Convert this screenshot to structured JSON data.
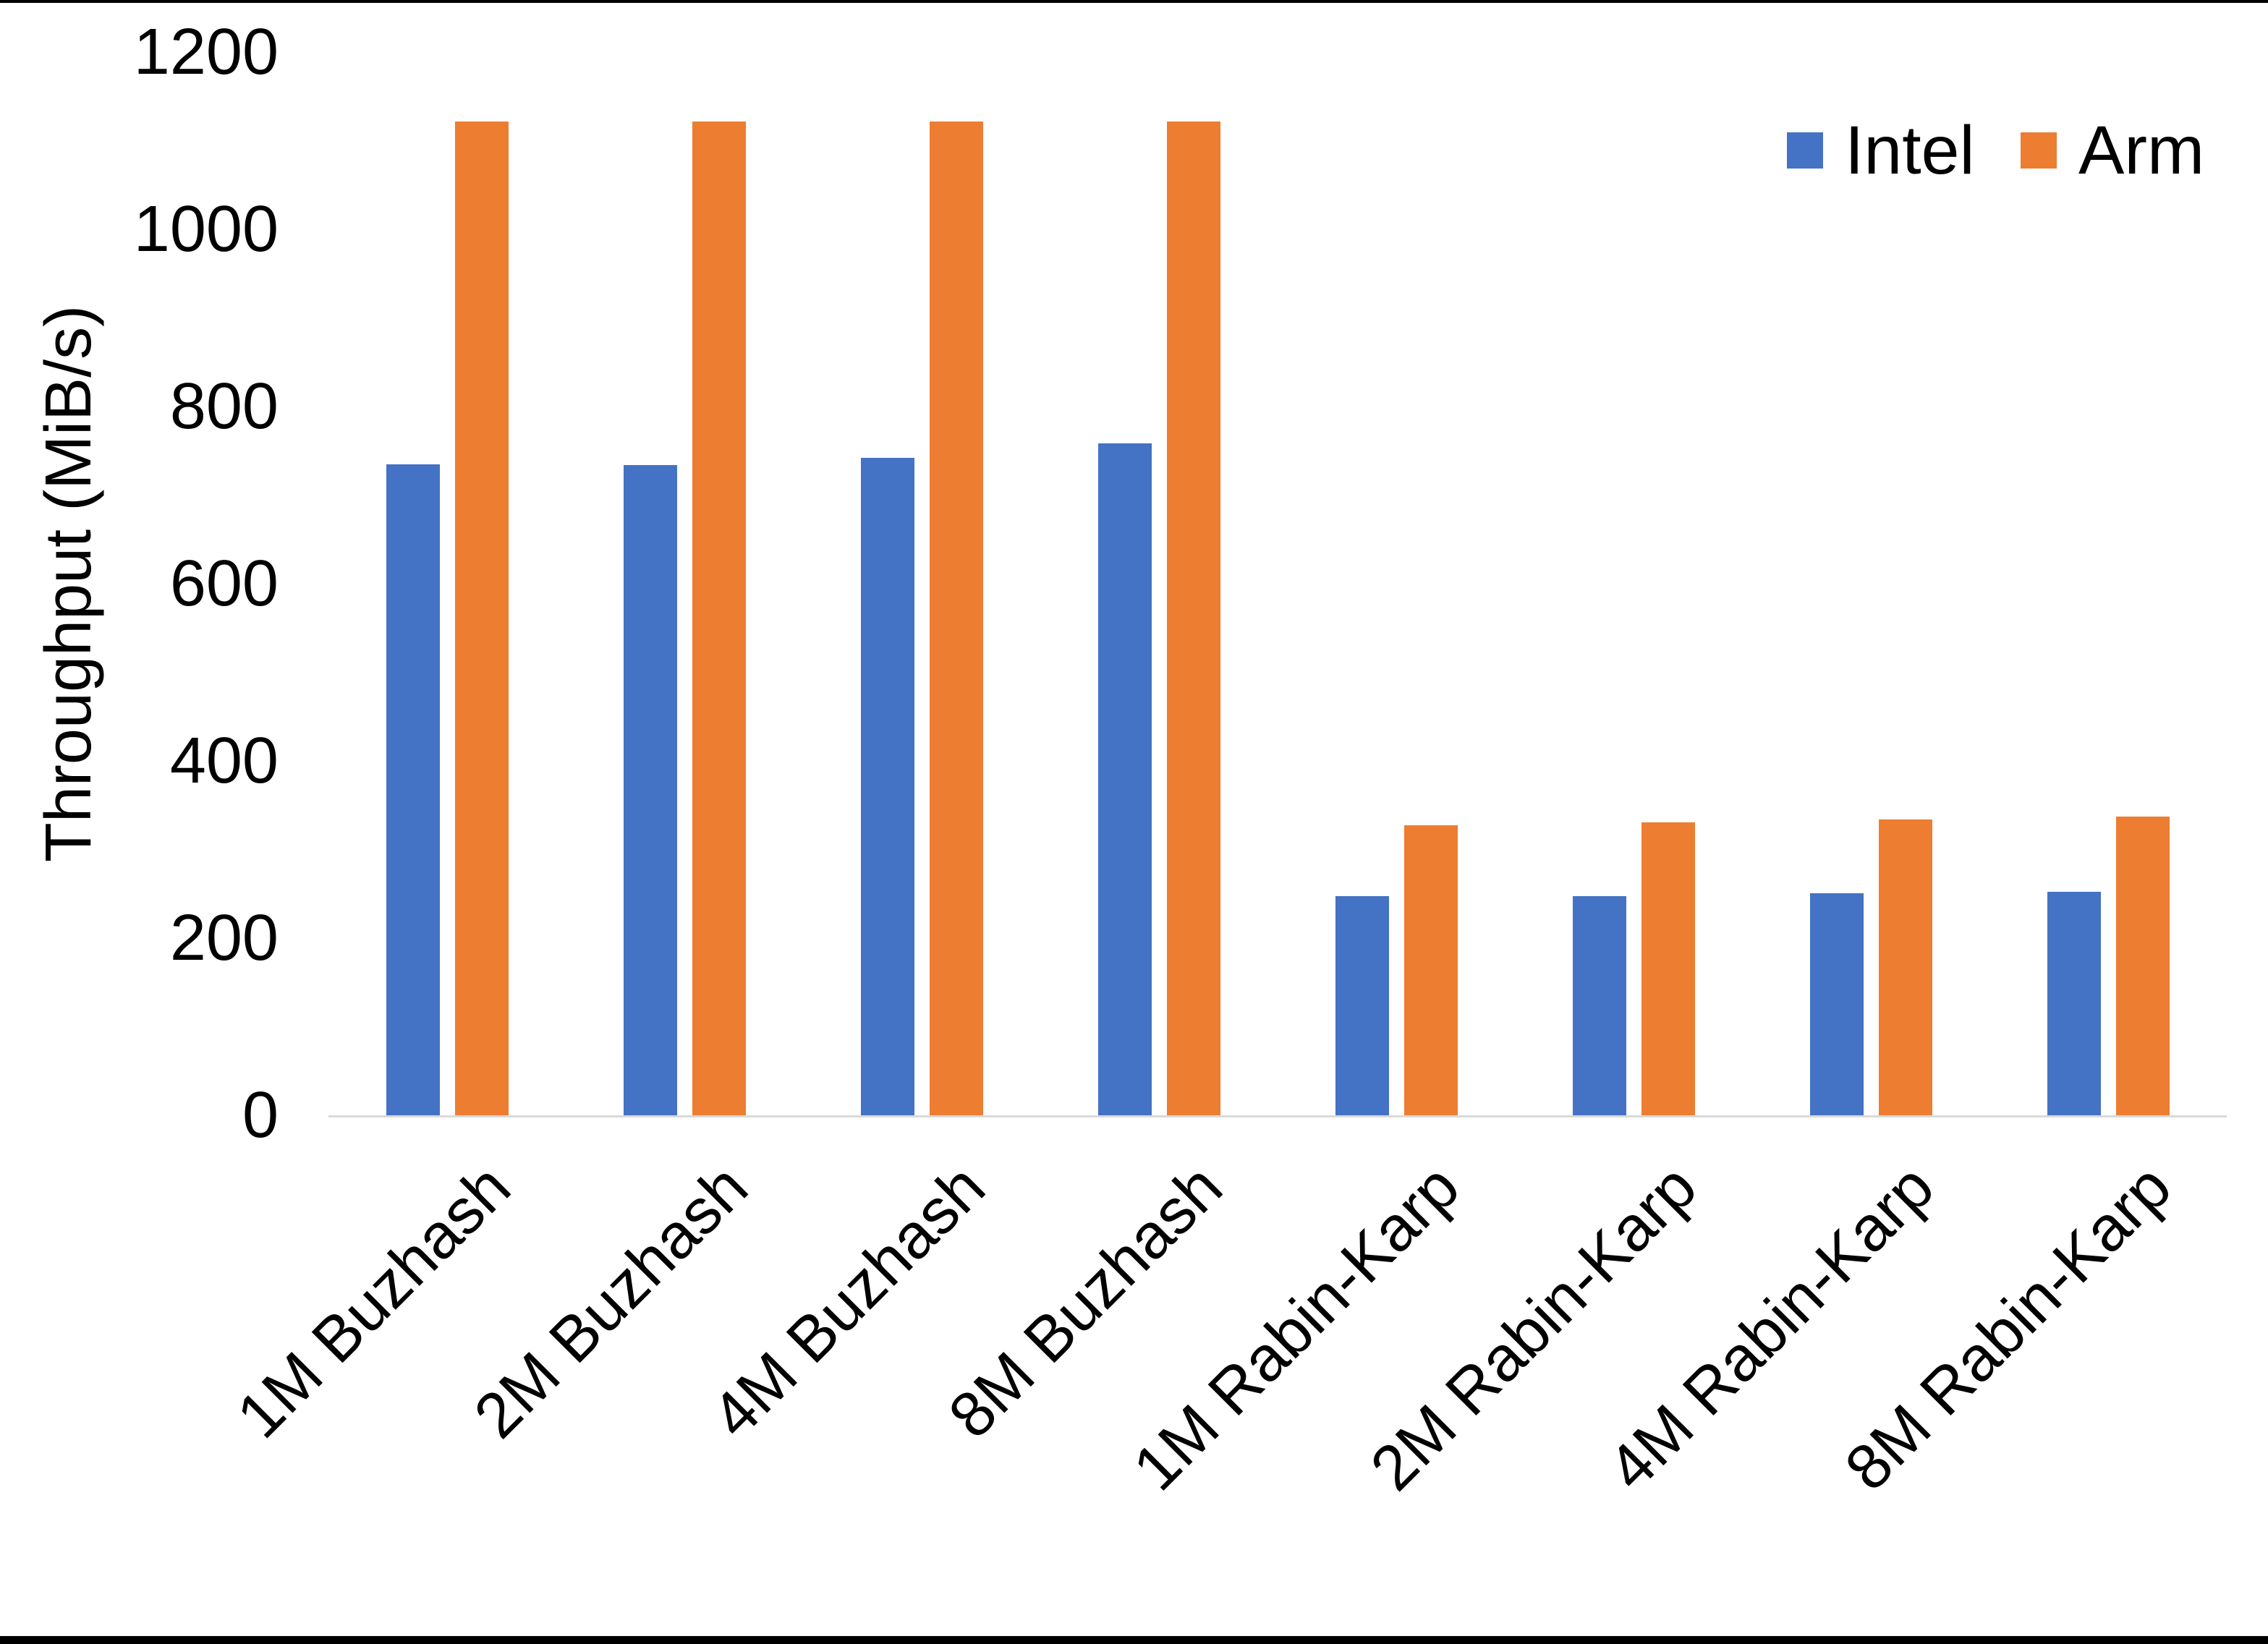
{
  "chart_data": {
    "type": "bar",
    "title": "",
    "xlabel": "",
    "ylabel": "Throughput (MiB/s)",
    "categories": [
      "1M Buzhash",
      "2M Buzhash",
      "4M Buzhash",
      "8M Buzhash",
      "1M Rabin-Karp",
      "2M Rabin-Karp",
      "4M Rabin-Karp",
      "8M Rabin-Karp"
    ],
    "series": [
      {
        "name": "Intel",
        "color": "#4472c4",
        "values": [
          735,
          734,
          742,
          758,
          247,
          247,
          251,
          252
        ]
      },
      {
        "name": "Arm",
        "color": "#ed7d31",
        "values": [
          1122,
          1122,
          1122,
          1122,
          327,
          331,
          334,
          337
        ]
      }
    ],
    "y_axis": {
      "min": 0,
      "max": 1200,
      "tick_step": 200,
      "ticks": [
        0,
        200,
        400,
        600,
        800,
        1000,
        1200
      ]
    },
    "grid": false,
    "legend_position": "top-right",
    "x_label_rotation_deg": -45
  },
  "colors": {
    "background": "#ffffff",
    "axis_line": "#d9d9d9",
    "text": "#000000",
    "page_border": "#000000"
  }
}
